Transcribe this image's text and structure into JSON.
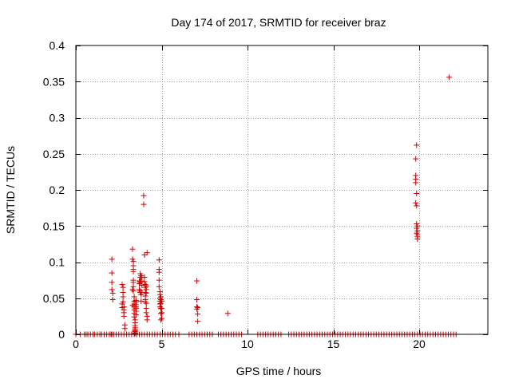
{
  "chart_data": {
    "type": "scatter",
    "title": "Day 174 of 2017, SRMTID for receiver braz",
    "xlabel": "GPS time / hours",
    "ylabel": "SRMTID / TECUs",
    "xlim": [
      0,
      24
    ],
    "ylim": [
      0,
      0.4
    ],
    "xticks": [
      0,
      5,
      10,
      15,
      20
    ],
    "xtick_labels": [
      "0",
      "5",
      "10",
      "15",
      "20"
    ],
    "yticks": [
      0,
      0.05,
      0.1,
      0.15,
      0.2,
      0.25,
      0.3,
      0.35,
      0.4
    ],
    "ytick_labels": [
      "0",
      "0.05",
      "0.1",
      "0.15",
      "0.2",
      "0.25",
      "0.3",
      "0.35",
      "0.4"
    ],
    "grid": true,
    "marker": "+",
    "color": "#cc0000",
    "series": [
      {
        "name": "SRMTID",
        "x": [
          0.0,
          0.25,
          0.5,
          0.6,
          0.7,
          0.85,
          1.0,
          1.1,
          1.25,
          1.4,
          1.5,
          1.65,
          1.8,
          1.95,
          2.05,
          2.2,
          2.35,
          2.5,
          2.65,
          2.8,
          2.95,
          3.1,
          3.25,
          3.4,
          3.55,
          3.7,
          3.85,
          4.0,
          4.15,
          4.3,
          4.45,
          4.6,
          4.75,
          4.9,
          5.05,
          5.2,
          5.35,
          5.5,
          5.65,
          5.8,
          6.0,
          6.6,
          6.75,
          6.9,
          7.05,
          7.2,
          7.35,
          7.5,
          7.65,
          7.8,
          7.95,
          8.3,
          8.45,
          8.6,
          8.75,
          8.9,
          9.05,
          9.2,
          9.35,
          9.5,
          9.65,
          10.6,
          10.75,
          10.9,
          11.05,
          11.2,
          11.35,
          11.5,
          11.65,
          11.8,
          11.95,
          12.4,
          12.55,
          12.7,
          12.85,
          13.0,
          13.15,
          13.3,
          13.45,
          13.6,
          13.75,
          13.9,
          14.05,
          14.2,
          14.35,
          14.5,
          14.65,
          14.8,
          14.95,
          15.1,
          15.25,
          15.4,
          15.55,
          15.7,
          15.85,
          16.0,
          16.15,
          16.3,
          16.45,
          16.6,
          16.75,
          16.9,
          17.05,
          17.2,
          17.35,
          17.5,
          17.65,
          17.8,
          17.95,
          18.1,
          18.25,
          18.4,
          18.55,
          18.7,
          18.85,
          19.0,
          19.15,
          19.3,
          19.45,
          19.6,
          19.75,
          19.9,
          20.05,
          20.2,
          20.35,
          20.5,
          20.65,
          20.8,
          20.95,
          21.1,
          21.25,
          21.4,
          21.55,
          21.7,
          21.85,
          22.0,
          22.15,
          2.05,
          2.1,
          2.1,
          2.1,
          2.1,
          2.1,
          2.15,
          2.15,
          2.7,
          2.7,
          2.7,
          2.75,
          2.75,
          2.75,
          2.75,
          2.8,
          2.8,
          2.8,
          2.8,
          2.85,
          2.85,
          3.3,
          3.3,
          3.3,
          3.3,
          3.35,
          3.35,
          3.35,
          3.35,
          3.35,
          3.35,
          3.35,
          3.35,
          3.4,
          3.4,
          3.4,
          3.4,
          3.4,
          3.4,
          3.4,
          3.45,
          3.45,
          3.45,
          3.45,
          3.45,
          3.45,
          3.45,
          3.45,
          3.45,
          3.5,
          3.5,
          3.5,
          3.5,
          3.5,
          3.5,
          3.5,
          3.7,
          3.7,
          3.7,
          3.75,
          3.75,
          3.75,
          3.75,
          3.75,
          3.75,
          3.8,
          3.8,
          3.8,
          3.8,
          3.85,
          3.85,
          3.85,
          3.95,
          3.95,
          4.0,
          4.0,
          4.0,
          4.05,
          4.05,
          4.05,
          4.05,
          4.05,
          4.05,
          4.1,
          4.1,
          4.1,
          4.1,
          4.1,
          4.1,
          4.15,
          4.15,
          4.15,
          4.85,
          4.85,
          4.85,
          4.85,
          4.85,
          4.9,
          4.9,
          4.9,
          4.9,
          4.9,
          4.9,
          4.95,
          4.95,
          4.95,
          4.95,
          4.95,
          4.95,
          5.0,
          5.0,
          5.0,
          5.0,
          7.05,
          7.05,
          7.05,
          7.05,
          7.1,
          7.1,
          7.1,
          8.85,
          19.8,
          19.8,
          19.8,
          19.8,
          19.8,
          19.85,
          19.85,
          19.85,
          19.85,
          19.85,
          19.85,
          19.9,
          19.9,
          19.9,
          19.9,
          19.9,
          21.75
        ],
        "y": [
          0,
          0,
          0,
          0,
          0,
          0,
          0,
          0,
          0,
          0,
          0,
          0,
          0,
          0,
          0,
          0,
          0,
          0,
          0,
          0,
          0,
          0,
          0,
          0,
          0,
          0,
          0,
          0,
          0,
          0,
          0,
          0,
          0,
          0,
          0,
          0,
          0,
          0,
          0,
          0,
          0,
          0,
          0,
          0,
          0,
          0,
          0,
          0,
          0,
          0,
          0,
          0,
          0,
          0,
          0,
          0,
          0,
          0,
          0,
          0,
          0,
          0,
          0,
          0,
          0,
          0,
          0,
          0,
          0,
          0,
          0,
          0,
          0,
          0,
          0,
          0,
          0,
          0,
          0,
          0,
          0,
          0,
          0,
          0,
          0,
          0,
          0,
          0,
          0,
          0,
          0,
          0,
          0,
          0,
          0,
          0,
          0,
          0,
          0,
          0,
          0,
          0,
          0,
          0,
          0,
          0,
          0,
          0,
          0,
          0,
          0,
          0,
          0,
          0,
          0,
          0,
          0,
          0,
          0,
          0,
          0,
          0,
          0,
          0,
          0,
          0,
          0,
          0,
          0,
          0,
          0,
          0,
          0,
          0,
          0,
          0,
          0,
          0,
          0,
          0.104,
          0.085,
          0.072,
          0.062,
          0.057,
          0.048,
          0.042,
          0.037,
          0.069,
          0.065,
          0.058,
          0.052,
          0.045,
          0.038,
          0.034,
          0.03,
          0.025,
          0.013,
          0.008,
          0.062,
          0.04,
          0.118,
          0.104,
          0.101,
          0.095,
          0.09,
          0.087,
          0.075,
          0.072,
          0.066,
          0.06,
          0.052,
          0.046,
          0.042,
          0.038,
          0.034,
          0.029,
          0.024,
          0.02,
          0.016,
          0.012,
          0.009,
          0.007,
          0.005,
          0.004,
          0.002,
          0.001,
          0.047,
          0.045,
          0.041,
          0.038,
          0.036,
          0.032,
          0.027,
          0.074,
          0.07,
          0.062,
          0.084,
          0.079,
          0.073,
          0.071,
          0.06,
          0.058,
          0.081,
          0.074,
          0.055,
          0.046,
          0.079,
          0.068,
          0.058,
          0.192,
          0.18,
          0.11,
          0.079,
          0.073,
          0.069,
          0.065,
          0.058,
          0.053,
          0.048,
          0.045,
          0.067,
          0.062,
          0.057,
          0.043,
          0.036,
          0.03,
          0.025,
          0.02,
          0.113,
          0.103,
          0.09,
          0.086,
          0.075,
          0.066,
          0.059,
          0.055,
          0.05,
          0.046,
          0.042,
          0.038,
          0.052,
          0.048,
          0.043,
          0.036,
          0.029,
          0.02,
          0.046,
          0.036,
          0.03,
          0.022,
          0.074,
          0.048,
          0.038,
          0.035,
          0.037,
          0.028,
          0.018,
          0.029,
          0.243,
          0.22,
          0.215,
          0.21,
          0.182,
          0.262,
          0.195,
          0.178,
          0.153,
          0.147,
          0.14,
          0.15,
          0.143,
          0.138,
          0.135,
          0.132,
          0.356
        ]
      }
    ]
  }
}
